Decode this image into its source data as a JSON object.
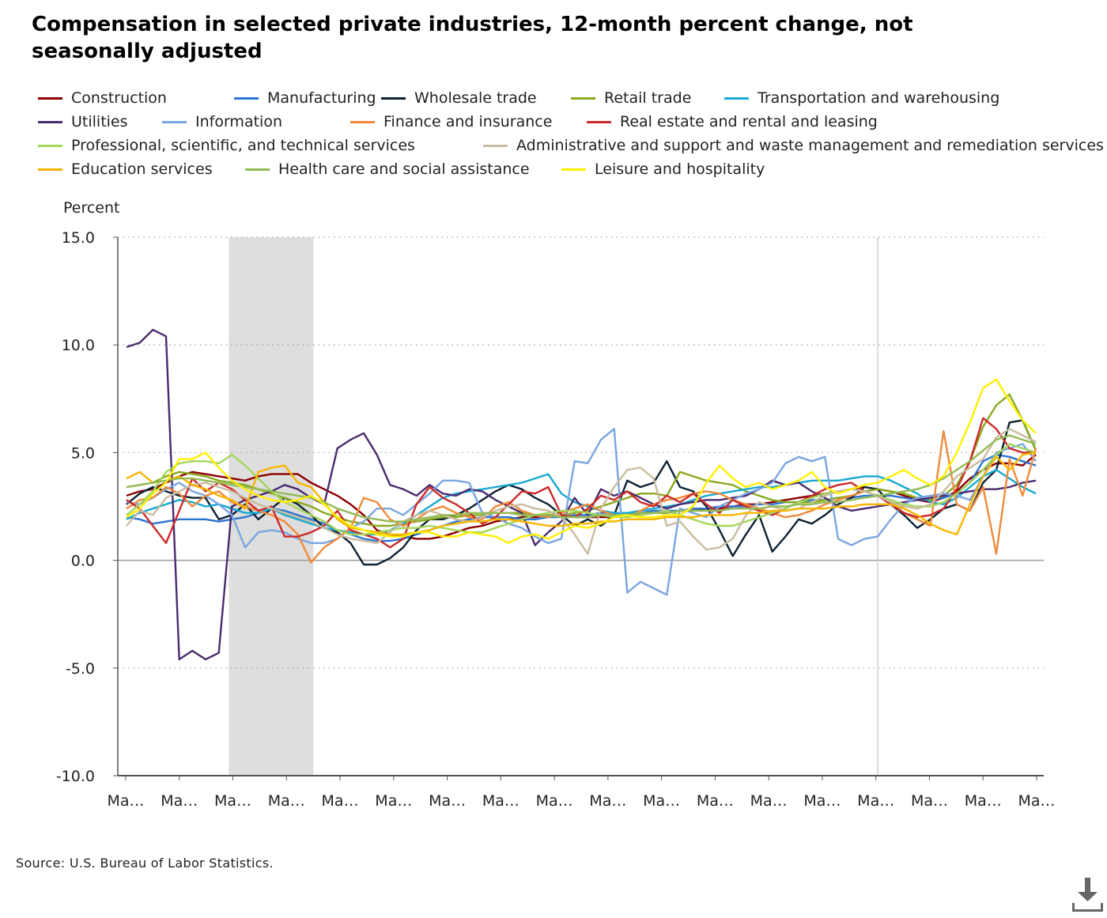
{
  "title": "Compensation in selected private industries, 12-month percent change, not seasonally adjusted",
  "source": "Source: U.S. Bureau of Labor Statistics.",
  "download_icon": "download-icon",
  "chart_data": {
    "type": "line",
    "ylabel": "Percent",
    "ylim": [
      -10,
      15
    ],
    "yticks": [
      "15.0",
      "10.0",
      "5.0",
      "0.0",
      "-5.0",
      "-10.0"
    ],
    "ytick_values": [
      15,
      10,
      5,
      0,
      -5,
      -10
    ],
    "xtick_labels": [
      "Ma…",
      "Ma…",
      "Ma…",
      "Ma…",
      "Ma…",
      "Ma…",
      "Ma…",
      "Ma…",
      "Ma…",
      "Ma…",
      "Ma…",
      "Ma…",
      "Ma…",
      "Ma…",
      "Ma…",
      "Ma…",
      "Ma…",
      "Ma…"
    ],
    "n_points": 70,
    "grid": "horizontal dotted",
    "legend": "top",
    "shaded_region": [
      8,
      14
    ],
    "vertical_marker": 57,
    "series": [
      {
        "name": "Construction",
        "color": "#8b0000",
        "values": [
          3.0,
          3.2,
          3.3,
          3.6,
          3.9,
          4.1,
          4.0,
          3.9,
          3.8,
          3.7,
          3.9,
          4.0,
          4.0,
          4.0,
          3.6,
          3.3,
          3.0,
          2.6,
          2.1,
          1.4,
          1.2,
          1.1,
          1.0,
          1.0,
          1.1,
          1.3,
          1.5,
          1.6,
          1.8,
          1.9,
          2.0,
          2.0,
          2.1,
          2.1,
          2.0,
          2.0,
          2.0,
          2.0,
          2.1,
          2.1,
          2.2,
          2.2,
          2.3,
          2.3,
          2.4,
          2.4,
          2.5,
          2.6,
          2.6,
          2.7,
          2.8,
          2.9,
          3.0,
          3.1,
          3.2,
          3.3,
          3.4,
          3.3,
          3.2,
          3.0,
          2.8,
          2.7,
          2.9,
          3.2,
          3.8,
          4.2,
          4.5,
          4.5,
          4.4,
          4.9
        ]
      },
      {
        "name": "Manufacturing",
        "color": "#2e75d1",
        "values": [
          2.0,
          1.9,
          1.7,
          1.8,
          1.9,
          1.9,
          1.9,
          1.8,
          1.9,
          2.0,
          2.2,
          2.4,
          2.3,
          2.1,
          1.9,
          1.7,
          1.4,
          1.2,
          1.0,
          0.9,
          0.9,
          1.0,
          1.2,
          1.4,
          1.6,
          1.8,
          1.9,
          2.0,
          2.0,
          2.0,
          1.9,
          1.9,
          2.0,
          2.0,
          2.1,
          2.1,
          2.2,
          2.2,
          2.2,
          2.2,
          2.3,
          2.3,
          2.3,
          2.4,
          2.4,
          2.5,
          2.5,
          2.5,
          2.6,
          2.6,
          2.7,
          2.7,
          2.8,
          2.8,
          2.9,
          2.9,
          3.0,
          3.0,
          3.0,
          2.9,
          2.8,
          2.8,
          2.9,
          3.1,
          3.6,
          4.6,
          4.9,
          4.8,
          4.6,
          4.4
        ]
      },
      {
        "name": "Wholesale trade",
        "color": "#0d2233",
        "values": [
          2.6,
          3.1,
          3.4,
          3.2,
          3.0,
          2.9,
          2.9,
          1.9,
          2.1,
          2.6,
          1.9,
          2.4,
          2.9,
          2.6,
          2.1,
          1.5,
          1.3,
          0.8,
          -0.2,
          -0.2,
          0.1,
          0.6,
          1.4,
          1.9,
          1.9,
          2.1,
          2.4,
          2.8,
          3.2,
          3.5,
          3.3,
          2.9,
          2.6,
          2.1,
          1.6,
          1.9,
          1.6,
          2.1,
          3.7,
          3.4,
          3.6,
          4.6,
          3.4,
          3.2,
          2.5,
          1.4,
          0.2,
          1.2,
          2.1,
          0.4,
          1.1,
          1.9,
          1.7,
          2.1,
          2.6,
          2.9,
          3.4,
          3.3,
          2.6,
          2.1,
          1.5,
          1.9,
          2.4,
          2.6,
          2.3,
          3.6,
          4.2,
          6.4,
          6.5,
          5.1
        ]
      },
      {
        "name": "Retail trade",
        "color": "#8aaa1e",
        "values": [
          3.4,
          3.5,
          3.6,
          3.9,
          4.1,
          4.0,
          3.9,
          3.7,
          3.6,
          3.5,
          3.3,
          3.1,
          2.9,
          2.7,
          2.5,
          2.2,
          2.0,
          1.8,
          1.7,
          1.6,
          1.6,
          1.7,
          1.8,
          1.9,
          2.0,
          2.0,
          2.1,
          2.1,
          2.2,
          2.2,
          2.2,
          2.1,
          2.1,
          2.1,
          2.2,
          2.3,
          2.5,
          2.7,
          2.9,
          3.1,
          3.1,
          3.0,
          4.1,
          3.9,
          3.7,
          3.6,
          3.5,
          3.2,
          3.0,
          2.8,
          2.7,
          2.7,
          2.7,
          2.8,
          2.9,
          3.0,
          3.2,
          3.3,
          3.2,
          3.1,
          2.9,
          2.8,
          3.0,
          3.5,
          4.6,
          6.2,
          7.2,
          7.7,
          6.5,
          5.1
        ]
      },
      {
        "name": "Transportation and warehousing",
        "color": "#17a9d1",
        "values": [
          1.9,
          2.2,
          2.4,
          2.6,
          2.8,
          2.7,
          2.5,
          2.6,
          2.4,
          2.2,
          2.2,
          2.4,
          2.1,
          1.9,
          1.7,
          1.5,
          1.4,
          1.3,
          1.2,
          1.2,
          1.4,
          1.7,
          2.1,
          2.5,
          2.9,
          3.1,
          3.2,
          3.3,
          3.4,
          3.5,
          3.6,
          3.8,
          4.0,
          3.1,
          2.7,
          2.5,
          2.3,
          2.2,
          2.2,
          2.3,
          2.4,
          2.5,
          2.6,
          2.8,
          3.0,
          3.1,
          3.2,
          3.3,
          3.4,
          3.4,
          3.5,
          3.6,
          3.7,
          3.7,
          3.7,
          3.8,
          3.9,
          3.9,
          3.7,
          3.4,
          3.1,
          2.7,
          2.6,
          2.9,
          3.4,
          3.9,
          4.2,
          3.8,
          3.4,
          3.1
        ]
      },
      {
        "name": "Utilities",
        "color": "#4b2a6e",
        "values": [
          9.9,
          10.1,
          10.7,
          10.4,
          -4.6,
          -4.2,
          -4.6,
          -4.3,
          2.5,
          2.8,
          3.0,
          3.2,
          3.5,
          3.3,
          2.9,
          2.6,
          5.2,
          5.6,
          5.9,
          4.9,
          3.5,
          3.3,
          3.0,
          3.5,
          3.1,
          3.0,
          3.3,
          3.2,
          2.8,
          2.5,
          2.2,
          0.7,
          1.3,
          1.8,
          2.9,
          2.1,
          3.3,
          3.0,
          3.2,
          2.9,
          2.6,
          2.4,
          2.6,
          2.7,
          2.8,
          2.8,
          2.9,
          3.0,
          3.3,
          3.7,
          3.5,
          3.6,
          3.2,
          2.9,
          2.5,
          2.3,
          2.4,
          2.5,
          2.6,
          2.7,
          2.8,
          2.9,
          3.0,
          3.1,
          3.2,
          3.3,
          3.3,
          3.4,
          3.6,
          3.7
        ]
      },
      {
        "name": "Information",
        "color": "#7aa6e0",
        "values": [
          2.7,
          2.6,
          2.9,
          3.3,
          3.6,
          3.2,
          3.0,
          2.6,
          2.1,
          0.6,
          1.3,
          1.4,
          1.3,
          1.0,
          0.8,
          0.8,
          1.0,
          1.5,
          1.8,
          2.4,
          2.4,
          2.1,
          2.6,
          3.1,
          3.7,
          3.7,
          3.6,
          2.2,
          2.0,
          1.7,
          1.5,
          1.1,
          0.8,
          1.0,
          4.6,
          4.5,
          5.6,
          6.1,
          -1.5,
          -1.0,
          -1.3,
          -1.6,
          2.4,
          2.2,
          2.0,
          2.5,
          2.8,
          3.1,
          3.3,
          3.6,
          4.5,
          4.8,
          4.6,
          4.8,
          1.0,
          0.7,
          1.0,
          1.1,
          1.9,
          2.6,
          2.9,
          3.0,
          3.1,
          3.0,
          2.8,
          3.9,
          5.0,
          5.2,
          5.4,
          4.6
        ]
      },
      {
        "name": "Finance and insurance",
        "color": "#f08a3a",
        "values": [
          2.4,
          2.8,
          2.9,
          3.4,
          3.1,
          2.5,
          3.0,
          3.2,
          2.7,
          2.5,
          2.3,
          2.1,
          1.8,
          1.2,
          -0.1,
          0.6,
          1.0,
          1.5,
          2.9,
          2.7,
          1.9,
          1.6,
          1.9,
          2.3,
          2.5,
          2.2,
          2.0,
          1.9,
          2.5,
          2.7,
          2.3,
          2.1,
          2.0,
          2.2,
          2.4,
          2.6,
          2.3,
          2.1,
          2.0,
          2.3,
          2.6,
          2.8,
          2.9,
          3.1,
          3.2,
          3.1,
          2.8,
          2.6,
          2.4,
          2.2,
          2.0,
          2.1,
          2.3,
          2.6,
          2.8,
          3.0,
          3.2,
          3.0,
          2.6,
          2.2,
          1.9,
          1.6,
          6.0,
          2.6,
          2.3,
          3.4,
          0.3,
          4.7,
          3.0,
          5.2
        ]
      },
      {
        "name": "Real estate and rental and leasing",
        "color": "#cc2a2a",
        "values": [
          2.8,
          2.4,
          1.6,
          0.8,
          2.3,
          3.8,
          3.2,
          3.6,
          3.3,
          2.8,
          2.3,
          2.5,
          1.1,
          1.1,
          1.3,
          1.6,
          2.3,
          1.4,
          1.2,
          1.0,
          0.6,
          1.0,
          2.6,
          3.4,
          2.9,
          2.6,
          2.2,
          1.7,
          2.0,
          2.6,
          3.2,
          3.1,
          3.4,
          2.1,
          2.0,
          2.4,
          3.0,
          2.8,
          3.2,
          2.7,
          2.5,
          3.0,
          2.7,
          3.1,
          2.6,
          2.2,
          2.8,
          2.5,
          2.3,
          2.1,
          2.4,
          2.7,
          3.0,
          3.3,
          3.5,
          3.6,
          3.2,
          3.0,
          2.6,
          2.2,
          2.0,
          2.1,
          2.4,
          3.3,
          4.6,
          6.6,
          6.1,
          5.2,
          5.0,
          5.0
        ]
      },
      {
        "name": "Professional, scientific, and technical services",
        "color": "#a3d65a",
        "values": [
          2.1,
          2.6,
          3.2,
          4.1,
          4.5,
          4.6,
          4.6,
          4.5,
          4.9,
          4.4,
          3.8,
          3.2,
          2.7,
          2.4,
          2.1,
          1.8,
          1.4,
          1.2,
          1.2,
          1.3,
          1.4,
          1.5,
          1.5,
          1.6,
          1.5,
          1.4,
          1.3,
          1.3,
          1.5,
          1.7,
          1.9,
          2.1,
          2.2,
          2.3,
          2.3,
          2.2,
          2.1,
          2.0,
          2.0,
          2.1,
          2.2,
          2.3,
          2.1,
          1.9,
          1.7,
          1.6,
          1.6,
          1.8,
          2.0,
          2.2,
          2.4,
          2.7,
          2.9,
          3.1,
          3.2,
          3.3,
          3.2,
          3.0,
          2.8,
          2.6,
          2.5,
          2.5,
          2.7,
          3.1,
          3.6,
          4.2,
          4.9,
          5.4,
          5.2,
          5.0
        ]
      },
      {
        "name": "Administrative and support and waste management and remediation services",
        "color": "#c9bca0",
        "values": [
          1.6,
          2.3,
          2.1,
          2.9,
          3.2,
          3.5,
          3.6,
          3.4,
          3.2,
          2.9,
          2.6,
          2.4,
          2.2,
          2.0,
          1.8,
          1.5,
          1.2,
          1.0,
          0.9,
          0.8,
          1.3,
          1.8,
          2.1,
          2.3,
          2.1,
          1.9,
          1.8,
          2.0,
          2.3,
          2.5,
          2.6,
          2.4,
          2.3,
          2.0,
          1.2,
          0.3,
          2.4,
          3.4,
          4.2,
          4.3,
          3.8,
          1.6,
          1.8,
          1.1,
          0.5,
          0.6,
          1.0,
          2.1,
          2.7,
          2.5,
          2.3,
          2.4,
          2.7,
          3.0,
          3.2,
          3.3,
          3.2,
          3.0,
          2.7,
          2.5,
          2.4,
          2.6,
          3.2,
          3.9,
          4.3,
          4.7,
          5.7,
          6.1,
          5.8,
          5.5
        ]
      },
      {
        "name": "Education services",
        "color": "#f7b500",
        "values": [
          3.8,
          4.1,
          3.6,
          3.7,
          3.9,
          3.5,
          3.3,
          3.0,
          2.8,
          2.4,
          4.1,
          4.3,
          4.4,
          3.6,
          3.4,
          2.7,
          1.9,
          1.5,
          1.4,
          1.3,
          1.2,
          1.2,
          1.3,
          1.4,
          1.6,
          1.7,
          1.8,
          1.8,
          1.9,
          1.9,
          1.8,
          1.7,
          1.6,
          1.6,
          1.7,
          1.7,
          1.8,
          1.8,
          1.9,
          1.9,
          1.9,
          2.0,
          2.0,
          2.0,
          2.1,
          2.1,
          2.1,
          2.2,
          2.2,
          2.3,
          2.3,
          2.4,
          2.4,
          2.4,
          2.5,
          2.5,
          2.6,
          2.6,
          2.6,
          2.4,
          2.1,
          1.7,
          1.4,
          1.2,
          2.6,
          3.9,
          4.8,
          4.2,
          4.9,
          5.0
        ]
      },
      {
        "name": "Health care and social assistance",
        "color": "#93bb55",
        "values": [
          3.4,
          3.5,
          3.6,
          3.7,
          3.8,
          3.8,
          3.7,
          3.6,
          3.5,
          3.4,
          3.3,
          3.2,
          3.1,
          3.0,
          2.9,
          2.7,
          2.4,
          2.2,
          2.0,
          1.9,
          1.8,
          1.8,
          1.9,
          2.0,
          2.1,
          2.1,
          2.2,
          2.2,
          2.2,
          2.2,
          2.1,
          2.1,
          2.1,
          2.0,
          2.0,
          2.0,
          2.1,
          2.1,
          2.1,
          2.2,
          2.2,
          2.2,
          2.3,
          2.3,
          2.3,
          2.3,
          2.4,
          2.4,
          2.4,
          2.5,
          2.5,
          2.6,
          2.6,
          2.7,
          2.7,
          2.8,
          2.9,
          3.0,
          3.1,
          3.2,
          3.3,
          3.5,
          3.8,
          4.2,
          4.6,
          5.1,
          5.6,
          5.8,
          5.6,
          5.4
        ]
      },
      {
        "name": "Leisure and hospitality",
        "color": "#fff000",
        "values": [
          2.0,
          2.4,
          3.1,
          3.6,
          4.7,
          4.7,
          5.0,
          4.3,
          3.7,
          3.3,
          3.0,
          2.8,
          2.7,
          2.8,
          3.0,
          2.6,
          2.0,
          1.6,
          1.4,
          1.2,
          1.1,
          1.1,
          1.3,
          1.3,
          1.1,
          1.1,
          1.3,
          1.2,
          1.1,
          0.8,
          1.1,
          1.2,
          1.0,
          1.3,
          1.6,
          1.5,
          1.7,
          2.0,
          2.1,
          2.0,
          2.0,
          2.1,
          2.1,
          2.5,
          3.6,
          4.4,
          3.8,
          3.4,
          3.6,
          3.3,
          3.5,
          3.7,
          4.1,
          3.4,
          3.1,
          3.3,
          3.5,
          3.6,
          3.9,
          4.2,
          3.8,
          3.5,
          3.9,
          5.0,
          6.4,
          8.0,
          8.4,
          7.4,
          6.5,
          5.9
        ]
      }
    ]
  }
}
